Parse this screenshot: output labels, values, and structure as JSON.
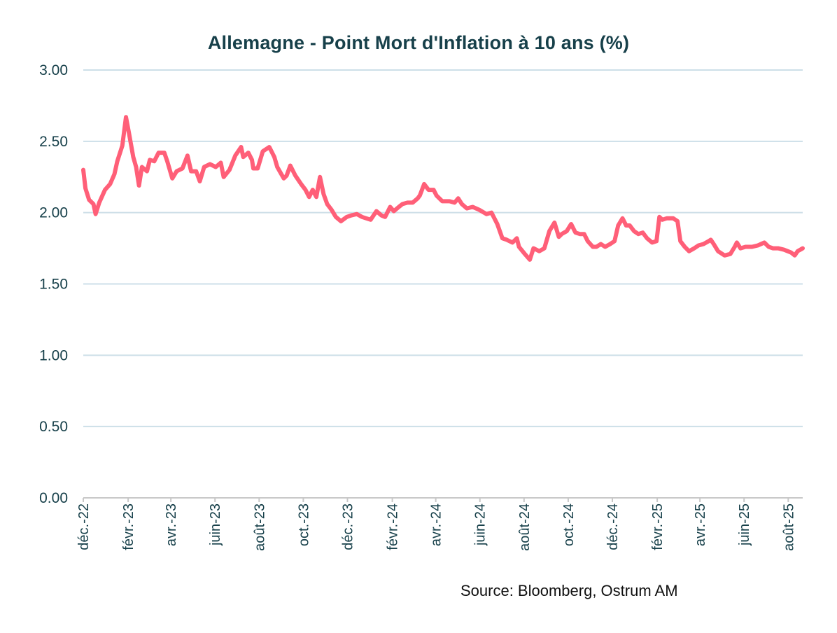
{
  "chart_data": {
    "type": "line",
    "title": "Allemagne  - Point Mort d'Inflation à 10 ans (%)",
    "xlabel": "",
    "ylabel": "",
    "ylim": [
      0,
      3
    ],
    "yticks": [
      "0.00",
      "0.50",
      "1.00",
      "1.50",
      "2.00",
      "2.50",
      "3.00"
    ],
    "xlim": [
      "2022-12-01",
      "2025-08-21"
    ],
    "xticks": [
      {
        "date": "2022-12-01",
        "label": "déc.-22"
      },
      {
        "date": "2023-02-01",
        "label": "févr.-23"
      },
      {
        "date": "2023-04-01",
        "label": "avr.-23"
      },
      {
        "date": "2023-06-01",
        "label": "juin-23"
      },
      {
        "date": "2023-08-01",
        "label": "août-23"
      },
      {
        "date": "2023-10-01",
        "label": "oct.-23"
      },
      {
        "date": "2023-12-01",
        "label": "déc.-23"
      },
      {
        "date": "2024-02-01",
        "label": "févr.-24"
      },
      {
        "date": "2024-04-01",
        "label": "avr.-24"
      },
      {
        "date": "2024-06-01",
        "label": "juin-24"
      },
      {
        "date": "2024-08-01",
        "label": "août-24"
      },
      {
        "date": "2024-10-01",
        "label": "oct.-24"
      },
      {
        "date": "2024-12-01",
        "label": "déc.-24"
      },
      {
        "date": "2025-02-01",
        "label": "févr.-25"
      },
      {
        "date": "2025-04-01",
        "label": "avr.-25"
      },
      {
        "date": "2025-06-01",
        "label": "juin-25"
      },
      {
        "date": "2025-08-01",
        "label": "août-25"
      }
    ],
    "grid": true,
    "line_color": "#ff5f78",
    "grid_color": "#cddfe8",
    "series": [
      {
        "x": [
          "2022-12-01",
          "2022-12-04",
          "2022-12-09",
          "2022-12-15",
          "2022-12-18",
          "2022-12-23",
          "2022-12-31",
          "2023-01-07",
          "2023-01-13",
          "2023-01-17",
          "2023-01-24",
          "2023-01-29",
          "2023-02-02",
          "2023-02-08",
          "2023-02-12",
          "2023-02-16",
          "2023-02-20",
          "2023-02-27",
          "2023-03-03",
          "2023-03-09",
          "2023-03-15",
          "2023-03-23",
          "2023-03-27",
          "2023-04-03",
          "2023-04-09",
          "2023-04-17",
          "2023-04-24",
          "2023-04-29",
          "2023-05-06",
          "2023-05-11",
          "2023-05-17",
          "2023-05-25",
          "2023-06-02",
          "2023-06-09",
          "2023-06-13",
          "2023-06-21",
          "2023-06-29",
          "2023-07-07",
          "2023-07-10",
          "2023-07-17",
          "2023-07-22",
          "2023-07-24",
          "2023-07-30",
          "2023-08-06",
          "2023-08-15",
          "2023-08-22",
          "2023-08-26",
          "2023-09-04",
          "2023-09-08",
          "2023-09-13",
          "2023-09-20",
          "2023-09-28",
          "2023-10-04",
          "2023-10-09",
          "2023-10-14",
          "2023-10-19",
          "2023-10-24",
          "2023-10-29",
          "2023-11-03",
          "2023-11-09",
          "2023-11-15",
          "2023-11-22",
          "2023-11-30",
          "2023-12-06",
          "2023-12-14",
          "2023-12-21",
          "2023-12-27",
          "2024-01-02",
          "2024-01-10",
          "2024-01-17",
          "2024-01-22",
          "2024-01-29",
          "2024-02-03",
          "2024-02-10",
          "2024-02-15",
          "2024-02-22",
          "2024-02-29",
          "2024-03-07",
          "2024-03-10",
          "2024-03-16",
          "2024-03-22",
          "2024-03-29",
          "2024-04-02",
          "2024-04-10",
          "2024-04-20",
          "2024-04-27",
          "2024-05-02",
          "2024-05-07",
          "2024-05-14",
          "2024-05-22",
          "2024-05-31",
          "2024-06-10",
          "2024-06-17",
          "2024-06-25",
          "2024-07-02",
          "2024-07-08",
          "2024-07-16",
          "2024-07-22",
          "2024-07-25",
          "2024-08-02",
          "2024-08-09",
          "2024-08-14",
          "2024-08-22",
          "2024-08-29",
          "2024-09-05",
          "2024-09-12",
          "2024-09-18",
          "2024-09-22",
          "2024-09-29",
          "2024-10-05",
          "2024-10-11",
          "2024-10-17",
          "2024-10-23",
          "2024-10-28",
          "2024-11-04",
          "2024-11-09",
          "2024-11-15",
          "2024-11-21",
          "2024-11-28",
          "2024-12-04",
          "2024-12-09",
          "2024-12-15",
          "2024-12-20",
          "2024-12-25",
          "2024-12-31",
          "2025-01-06",
          "2025-01-12",
          "2025-01-18",
          "2025-01-25",
          "2025-01-31",
          "2025-02-04",
          "2025-02-08",
          "2025-02-14",
          "2025-02-23",
          "2025-03-01",
          "2025-03-05",
          "2025-03-11",
          "2025-03-17",
          "2025-03-24",
          "2025-03-30",
          "2025-04-06",
          "2025-04-13",
          "2025-04-16",
          "2025-04-20",
          "2025-04-26",
          "2025-05-05",
          "2025-05-13",
          "2025-05-19",
          "2025-05-22",
          "2025-05-27",
          "2025-06-03",
          "2025-06-12",
          "2025-06-20",
          "2025-06-29",
          "2025-07-05",
          "2025-07-11",
          "2025-07-18",
          "2025-07-26",
          "2025-08-05",
          "2025-08-10",
          "2025-08-14",
          "2025-08-21"
        ],
        "y": [
          2.3,
          2.17,
          2.09,
          2.06,
          1.99,
          2.07,
          2.16,
          2.2,
          2.27,
          2.36,
          2.47,
          2.67,
          2.56,
          2.39,
          2.32,
          2.19,
          2.32,
          2.29,
          2.37,
          2.36,
          2.42,
          2.42,
          2.36,
          2.24,
          2.29,
          2.31,
          2.4,
          2.29,
          2.29,
          2.22,
          2.32,
          2.34,
          2.32,
          2.35,
          2.25,
          2.3,
          2.4,
          2.46,
          2.39,
          2.42,
          2.37,
          2.31,
          2.31,
          2.43,
          2.46,
          2.39,
          2.32,
          2.24,
          2.26,
          2.33,
          2.26,
          2.2,
          2.16,
          2.11,
          2.16,
          2.11,
          2.25,
          2.13,
          2.06,
          2.02,
          1.97,
          1.94,
          1.97,
          1.98,
          1.99,
          1.97,
          1.96,
          1.95,
          2.01,
          1.98,
          1.97,
          2.04,
          2.01,
          2.04,
          2.06,
          2.07,
          2.07,
          2.1,
          2.12,
          2.2,
          2.16,
          2.16,
          2.12,
          2.08,
          2.08,
          2.07,
          2.1,
          2.06,
          2.03,
          2.04,
          2.02,
          1.99,
          2.0,
          1.92,
          1.82,
          1.81,
          1.79,
          1.82,
          1.76,
          1.71,
          1.67,
          1.75,
          1.73,
          1.75,
          1.87,
          1.93,
          1.83,
          1.85,
          1.87,
          1.92,
          1.86,
          1.85,
          1.85,
          1.8,
          1.76,
          1.76,
          1.78,
          1.76,
          1.78,
          1.8,
          1.91,
          1.96,
          1.91,
          1.91,
          1.87,
          1.85,
          1.86,
          1.82,
          1.79,
          1.8,
          1.97,
          1.95,
          1.96,
          1.96,
          1.94,
          1.8,
          1.76,
          1.73,
          1.75,
          1.77,
          1.78,
          1.8,
          1.81,
          1.78,
          1.73,
          1.7,
          1.71,
          1.76,
          1.79,
          1.75,
          1.76,
          1.76,
          1.77,
          1.79,
          1.76,
          1.75,
          1.75,
          1.74,
          1.72,
          1.7,
          1.73,
          1.75
        ]
      }
    ]
  },
  "source": "Source: Bloomberg, Ostrum AM"
}
